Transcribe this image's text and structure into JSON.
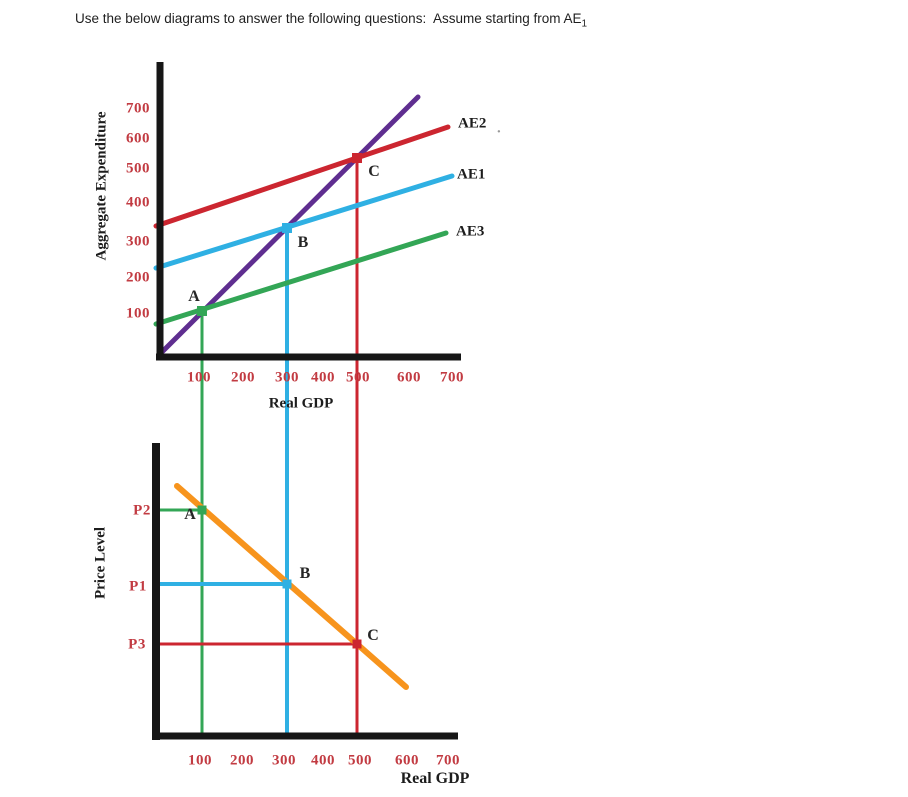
{
  "title": {
    "text": "Use the below diagrams to answer the following questions:  Assume starting from AE",
    "sub": "1"
  },
  "colors": {
    "red": "#cc2630",
    "cyan": "#2fb0e3",
    "green": "#33a656",
    "purple": "#5f2e90",
    "orange": "#f7941d",
    "axis": "#161616",
    "tick": "#c23b42",
    "text": "#262626",
    "stray": "#999999"
  },
  "chart_data": [
    {
      "type": "line",
      "title": "",
      "ylabel": "Aggregate Expenditure",
      "xlabel": "Real GDP",
      "x_ticks": [
        100,
        200,
        300,
        400,
        500,
        600,
        700
      ],
      "y_ticks": [
        700,
        600,
        500,
        400,
        300,
        200,
        100
      ],
      "xlim": [
        0,
        760
      ],
      "ylim": [
        0,
        780
      ],
      "grid": false,
      "legend": "labels-at-line-ends",
      "series": [
        {
          "name": "45-degree-line",
          "label": "",
          "color": "purple",
          "points": [
            [
              0,
              0
            ],
            [
              620,
              740
            ]
          ]
        },
        {
          "name": "AE2",
          "label": "AE2",
          "color": "red",
          "points": [
            [
              0,
              340
            ],
            [
              690,
              640
            ]
          ]
        },
        {
          "name": "AE1",
          "label": "AE1",
          "color": "cyan",
          "points": [
            [
              0,
              230
            ],
            [
              695,
              480
            ]
          ]
        },
        {
          "name": "AE3",
          "label": "AE3",
          "color": "green",
          "points": [
            [
              0,
              75
            ],
            [
              685,
              325
            ]
          ]
        }
      ],
      "points": [
        {
          "label": "A",
          "x": 100,
          "y": 100,
          "color": "green"
        },
        {
          "label": "B",
          "x": 300,
          "y": 300,
          "color": "cyan"
        },
        {
          "label": "C",
          "x": 500,
          "y": 500,
          "color": "red"
        }
      ],
      "stray_mark": "."
    },
    {
      "type": "line",
      "title": "",
      "ylabel": "Price Level",
      "xlabel": "Real GDP",
      "x_ticks": [
        100,
        200,
        300,
        400,
        500,
        600,
        700
      ],
      "y_ticks": [
        "P2",
        "P1",
        "P3"
      ],
      "xlim": [
        0,
        760
      ],
      "grid": false,
      "series": [
        {
          "name": "AD",
          "label": "",
          "color": "orange",
          "x_start": 55,
          "x_end": 620,
          "direction": "downward-sloping"
        }
      ],
      "points": [
        {
          "label": "A",
          "x": 100,
          "y": "P2",
          "color": "green"
        },
        {
          "label": "B",
          "x": 300,
          "y": "P1",
          "color": "cyan"
        },
        {
          "label": "C",
          "x": 500,
          "y": "P3",
          "color": "red"
        }
      ]
    }
  ]
}
